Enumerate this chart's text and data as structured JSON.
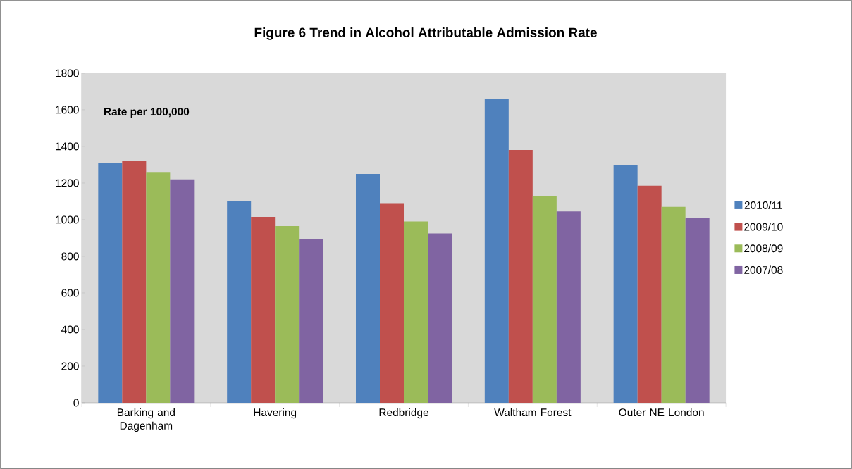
{
  "chart_data": {
    "type": "bar",
    "title": "Figure 6 Trend in Alcohol Attributable Admission Rate",
    "categories": [
      "Barking and Dagenham",
      "Havering",
      "Redbridge",
      "Waltham Forest",
      "Outer NE London"
    ],
    "series": [
      {
        "name": "2010/11",
        "color": "#4f81bd",
        "values": [
          1310,
          1100,
          1250,
          1660,
          1300
        ]
      },
      {
        "name": "2009/10",
        "color": "#c0504d",
        "values": [
          1320,
          1015,
          1090,
          1380,
          1185
        ]
      },
      {
        "name": "2008/09",
        "color": "#9bbb59",
        "values": [
          1260,
          965,
          990,
          1130,
          1070
        ]
      },
      {
        "name": "2007/08",
        "color": "#8064a2",
        "values": [
          1220,
          895,
          925,
          1045,
          1010
        ]
      }
    ],
    "annotations": [
      "Rate per 100,000"
    ],
    "ylim": [
      0,
      1800
    ],
    "yticks": [
      0,
      200,
      400,
      600,
      800,
      1000,
      1200,
      1400,
      1600,
      1800
    ],
    "grid": false,
    "legend": "right"
  }
}
